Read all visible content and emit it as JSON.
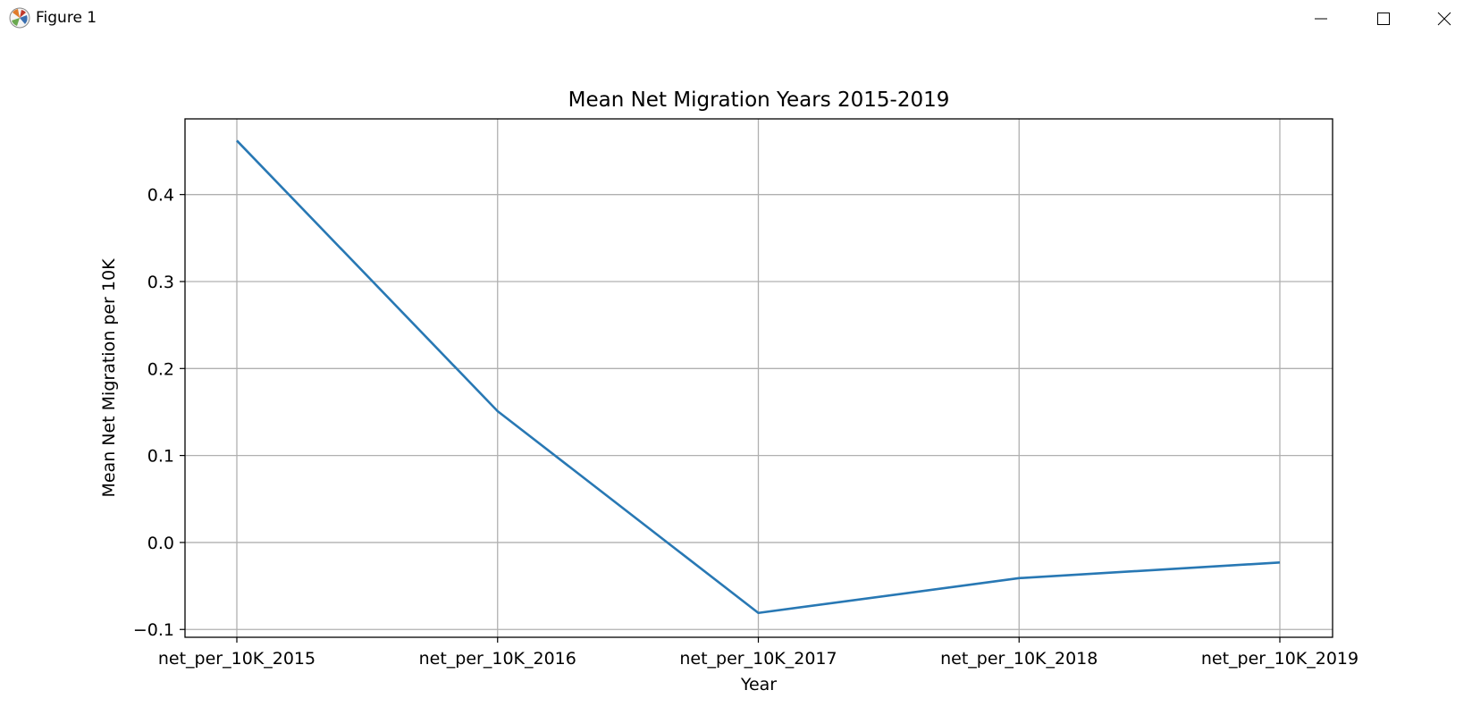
{
  "window": {
    "title": "Figure 1",
    "icons": {
      "app": "matplotlib-logo-icon",
      "minimize": "minimize-icon",
      "maximize": "maximize-icon",
      "close": "close-icon"
    }
  },
  "chart_data": {
    "type": "line",
    "title": "Mean Net Migration Years 2015-2019",
    "xlabel": "Year",
    "ylabel": "Mean Net Migration per 10K",
    "categories": [
      "net_per_10K_2015",
      "net_per_10K_2016",
      "net_per_10K_2017",
      "net_per_10K_2018",
      "net_per_10K_2019"
    ],
    "series": [
      {
        "values": [
          0.462,
          0.151,
          -0.081,
          -0.041,
          -0.023
        ],
        "color": "#2878b4"
      }
    ],
    "ylim": [
      -0.109,
      0.487
    ],
    "yticks": [
      -0.1,
      0.0,
      0.1,
      0.2,
      0.3,
      0.4
    ],
    "ytick_labels": [
      "−0.1",
      "0.0",
      "0.1",
      "0.2",
      "0.3",
      "0.4"
    ],
    "grid": true,
    "colors": {
      "line": "#2878b4",
      "grid": "#b0b0b0",
      "axes": "#000000"
    }
  }
}
